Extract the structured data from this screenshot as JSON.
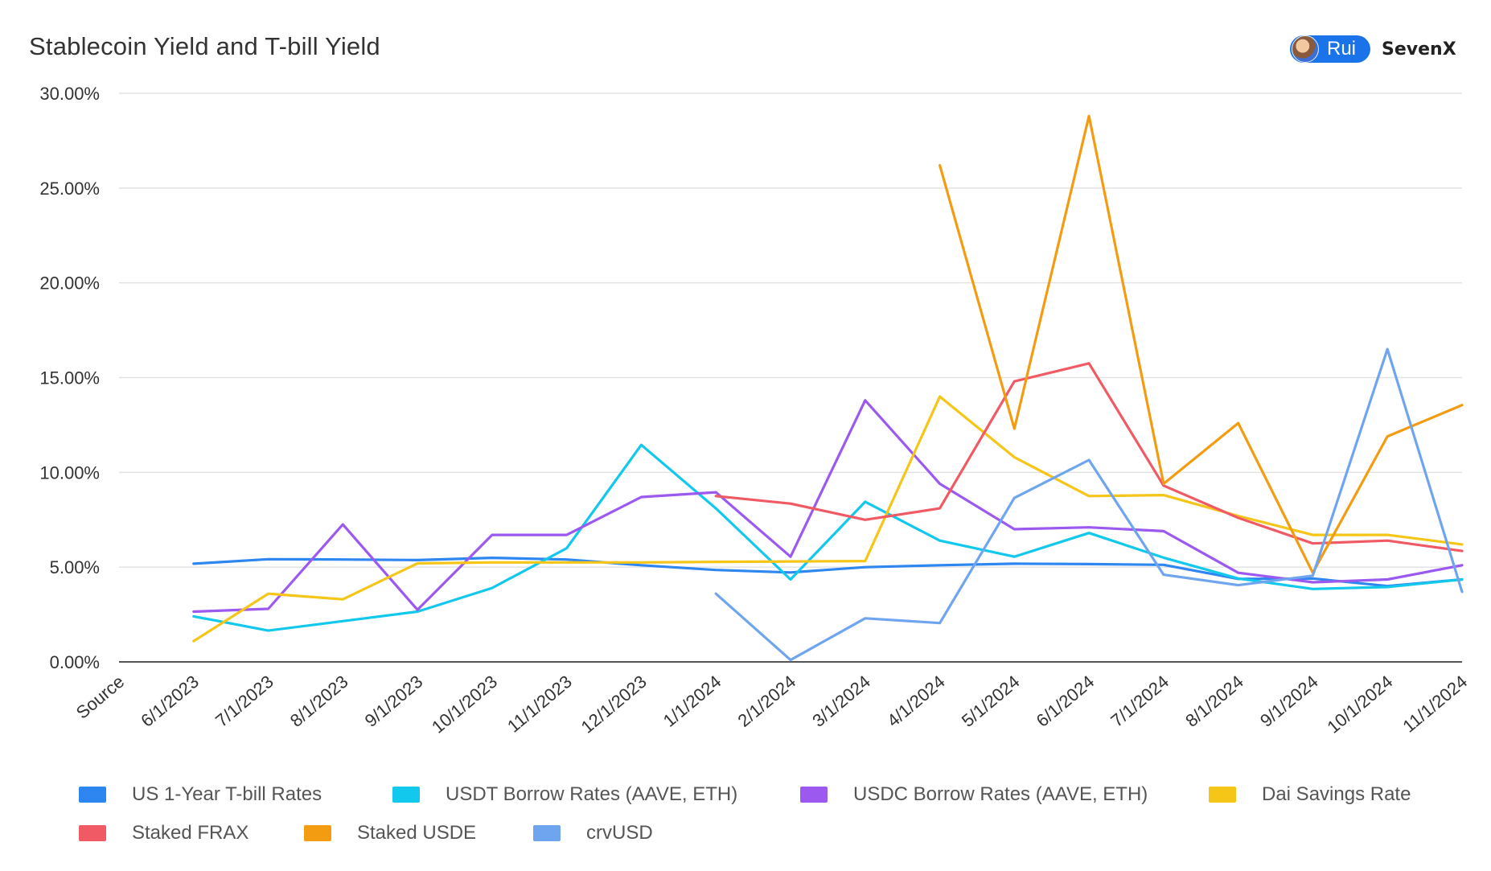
{
  "brand": {
    "user": "Rui",
    "name": "SevenX"
  },
  "chart_data": {
    "type": "line",
    "title": "Stablecoin Yield and T-bill Yield",
    "xlabel": "",
    "ylabel": "",
    "categories": [
      "Source",
      "6/1/2023",
      "7/1/2023",
      "8/1/2023",
      "9/1/2023",
      "10/1/2023",
      "11/1/2023",
      "12/1/2023",
      "1/1/2024",
      "2/1/2024",
      "3/1/2024",
      "4/1/2024",
      "5/1/2024",
      "6/1/2024",
      "7/1/2024",
      "8/1/2024",
      "9/1/2024",
      "10/1/2024",
      "11/1/2024"
    ],
    "ylim": [
      0,
      30
    ],
    "yticks": [
      "0.00%",
      "5.00%",
      "10.00%",
      "15.00%",
      "20.00%",
      "25.00%",
      "30.00%"
    ],
    "grid": true,
    "legend_position": "bottom",
    "series": [
      {
        "name": "US 1-Year T-bill Rates",
        "color": "#2e86f0",
        "values": [
          null,
          5.18,
          5.42,
          5.4,
          5.37,
          5.49,
          5.4,
          5.1,
          4.85,
          4.72,
          5.0,
          5.1,
          5.18,
          5.16,
          5.12,
          4.38,
          4.4,
          4.0,
          4.35
        ]
      },
      {
        "name": "USDT Borrow Rates (AAVE, ETH)",
        "color": "#12c8ec",
        "values": [
          null,
          2.4,
          1.65,
          2.15,
          2.65,
          3.9,
          6.0,
          11.45,
          8.1,
          4.35,
          8.45,
          6.4,
          5.55,
          6.8,
          5.5,
          4.4,
          3.85,
          3.95,
          4.35
        ]
      },
      {
        "name": "USDC Borrow Rates (AAVE, ETH)",
        "color": "#9b59f0",
        "values": [
          null,
          2.65,
          2.8,
          7.25,
          2.75,
          6.7,
          6.7,
          8.7,
          8.95,
          5.55,
          13.8,
          9.4,
          7.0,
          7.1,
          6.9,
          4.7,
          4.2,
          4.35,
          5.1
        ]
      },
      {
        "name": "Dai Savings Rate",
        "color": "#f5c518",
        "values": [
          null,
          1.1,
          3.6,
          3.3,
          5.2,
          5.25,
          5.25,
          5.25,
          5.28,
          5.3,
          5.32,
          14.0,
          10.8,
          8.75,
          8.8,
          7.7,
          6.7,
          6.7,
          6.2
        ]
      },
      {
        "name": "Staked FRAX",
        "color": "#f05a65",
        "values": [
          null,
          null,
          null,
          null,
          null,
          null,
          null,
          null,
          8.75,
          8.35,
          7.5,
          8.1,
          14.8,
          15.75,
          9.3,
          7.6,
          6.25,
          6.4,
          5.85
        ]
      },
      {
        "name": "Staked USDE",
        "color": "#f39c12",
        "values": [
          null,
          null,
          null,
          null,
          null,
          null,
          null,
          null,
          null,
          null,
          null,
          26.2,
          12.3,
          28.8,
          9.4,
          12.6,
          4.7,
          11.9,
          13.55
        ]
      },
      {
        "name": "crvUSD",
        "color": "#6fa5ef",
        "values": [
          null,
          null,
          null,
          null,
          null,
          null,
          null,
          null,
          3.6,
          0.1,
          2.3,
          2.05,
          8.65,
          10.65,
          4.6,
          4.05,
          4.55,
          16.5,
          3.7
        ]
      }
    ]
  }
}
